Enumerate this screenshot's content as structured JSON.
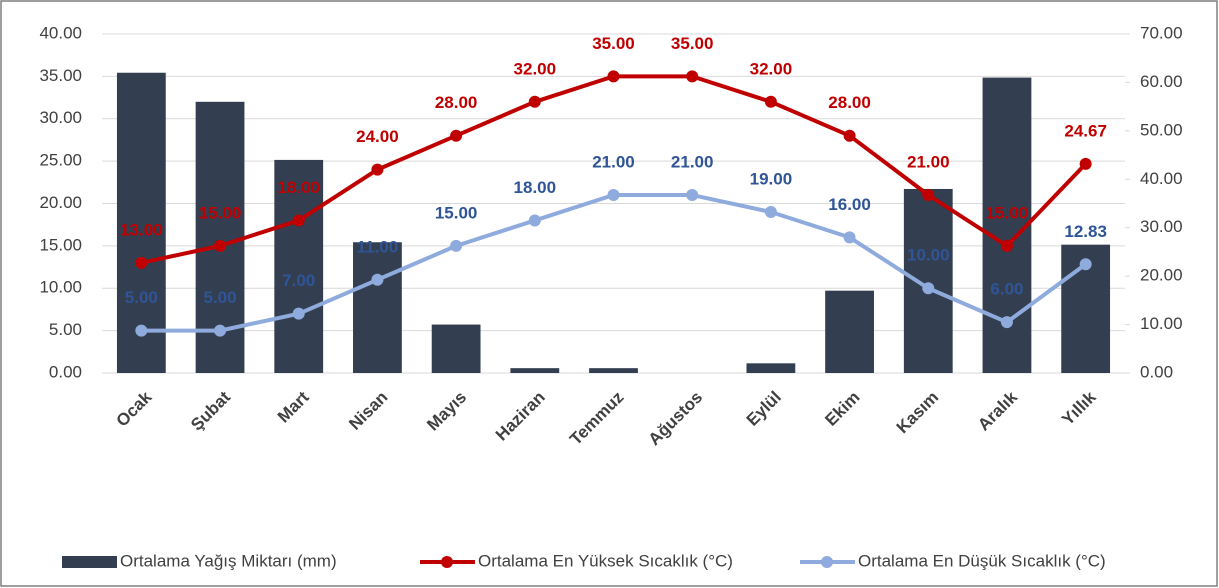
{
  "chart_data": {
    "type": "combo",
    "categories": [
      "Ocak",
      "Şubat",
      "Mart",
      "Nisan",
      "Mayıs",
      "Haziran",
      "Temmuz",
      "Ağustos",
      "Eylül",
      "Ekim",
      "Kasım",
      "Aralık",
      "Yıllık"
    ],
    "series": [
      {
        "name": "Ortalama Yağış Miktarı (mm)",
        "type": "bar",
        "axis": "y2",
        "color": "#333f50",
        "values": [
          62,
          56,
          44,
          27,
          10,
          1,
          1,
          0,
          2,
          17,
          38,
          61,
          26.5
        ]
      },
      {
        "name": "Ortalama En Yüksek Sıcaklık (°C)",
        "type": "line",
        "color": "#c00000",
        "label_color": "#c00000",
        "values": [
          13,
          15,
          18,
          24,
          28,
          32,
          35,
          35,
          32,
          28,
          21,
          15,
          24.67
        ],
        "value_labels": [
          "13.00",
          "15.00",
          "18.00",
          "24.00",
          "28.00",
          "32.00",
          "35.00",
          "35.00",
          "32.00",
          "28.00",
          "21.00",
          "15.00",
          "24.67"
        ]
      },
      {
        "name": "Ortalama En Düşük Sıcaklık  (°C)",
        "type": "line",
        "color": "#8faadc",
        "label_color": "#2f5597",
        "values": [
          5,
          5,
          7,
          11,
          15,
          18,
          21,
          21,
          19,
          16,
          10,
          6,
          12.83
        ],
        "value_labels": [
          "5.00",
          "5.00",
          "7.00",
          "11.00",
          "15.00",
          "18.00",
          "21.00",
          "21.00",
          "19.00",
          "16.00",
          "10.00",
          "6.00",
          "12.83"
        ]
      }
    ],
    "ylim": [
      0,
      40
    ],
    "yticks": [
      {
        "value": 0,
        "label": "0.00"
      },
      {
        "value": 5,
        "label": "5.00"
      },
      {
        "value": 10,
        "label": "10.00"
      },
      {
        "value": 15,
        "label": "15.00"
      },
      {
        "value": 20,
        "label": "20.00"
      },
      {
        "value": 25,
        "label": "25.00"
      },
      {
        "value": 30,
        "label": "30.00"
      },
      {
        "value": 35,
        "label": "35.00"
      },
      {
        "value": 40,
        "label": "40.00"
      }
    ],
    "y2lim": [
      0,
      70
    ],
    "y2ticks": [
      {
        "value": 0,
        "label": "0.00"
      },
      {
        "value": 10,
        "label": "10.00"
      },
      {
        "value": 20,
        "label": "20.00"
      },
      {
        "value": 30,
        "label": "30.00"
      },
      {
        "value": 40,
        "label": "40.00"
      },
      {
        "value": 50,
        "label": "50.00"
      },
      {
        "value": 60,
        "label": "60.00"
      },
      {
        "value": 70,
        "label": "70.00"
      }
    ],
    "grid": true,
    "legend": "bottom"
  }
}
